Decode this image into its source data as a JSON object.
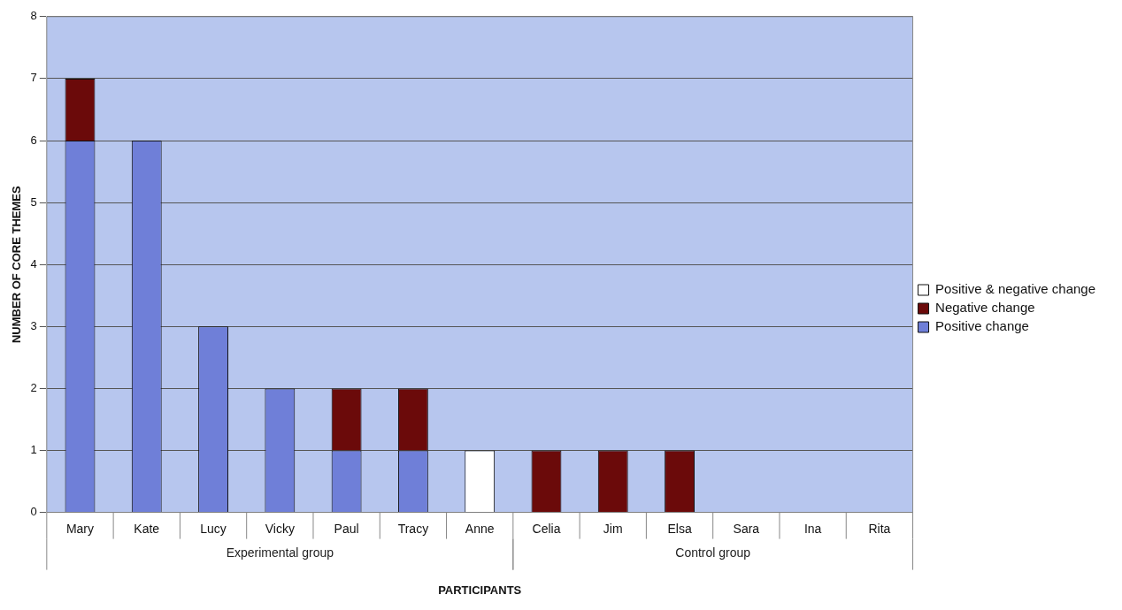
{
  "chart_data": {
    "type": "bar",
    "stacked": true,
    "xlabel": "PARTICIPANTS",
    "ylabel": "NUMBER OF CORE THEMES",
    "categories": [
      "Mary",
      "Kate",
      "Lucy",
      "Vicky",
      "Paul",
      "Tracy",
      "Anne",
      "Celia",
      "Jim",
      "Elsa",
      "Sara",
      "Ina",
      "Rita"
    ],
    "series": [
      {
        "name": "Positive change",
        "color": "#6f7fd8",
        "values": [
          6,
          6,
          3,
          2,
          1,
          1,
          0,
          0,
          0,
          0,
          0,
          0,
          0
        ]
      },
      {
        "name": "Negative change",
        "color": "#6b0a0a",
        "values": [
          1,
          0,
          0,
          0,
          1,
          1,
          0,
          1,
          1,
          1,
          0,
          0,
          0
        ]
      },
      {
        "name": "Positive & negative change",
        "color": "#ffffff",
        "values": [
          0,
          0,
          0,
          0,
          0,
          0,
          1,
          0,
          0,
          0,
          0,
          0,
          0
        ]
      }
    ],
    "annotations": [
      "Experimental group",
      "Control group"
    ],
    "ylim": [
      0,
      8
    ],
    "yticks": [
      0,
      1,
      2,
      3,
      4,
      5,
      6,
      7,
      8
    ],
    "grid": "y",
    "legend": "right"
  }
}
